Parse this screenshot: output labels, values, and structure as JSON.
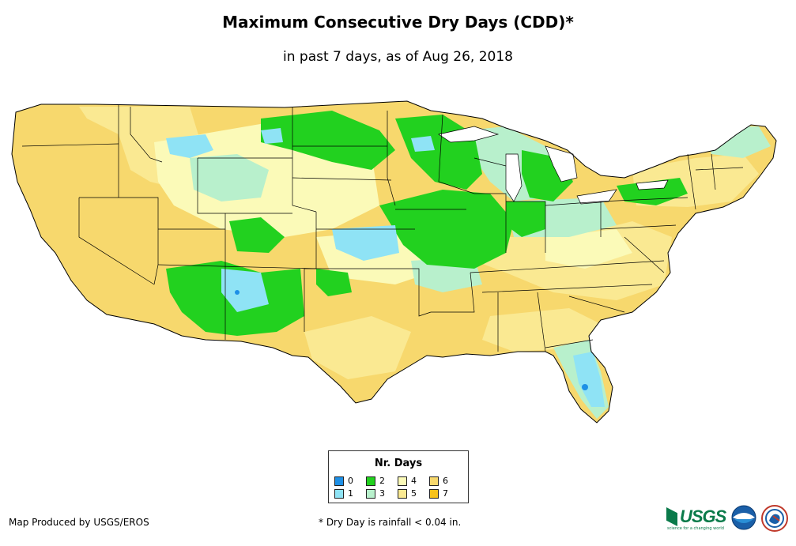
{
  "title": "Maximum Consecutive Dry Days (CDD)*",
  "subtitle": "in past 7 days, as of Aug 26, 2018",
  "legend": {
    "title": "Nr. Days",
    "items": [
      {
        "label": "0",
        "color": "#1e90e6"
      },
      {
        "label": "1",
        "color": "#8fe3f5"
      },
      {
        "label": "2",
        "color": "#22d11f"
      },
      {
        "label": "3",
        "color": "#b8f0cc"
      },
      {
        "label": "4",
        "color": "#fbfab8"
      },
      {
        "label": "5",
        "color": "#fae992"
      },
      {
        "label": "6",
        "color": "#f7d86d"
      },
      {
        "label": "7",
        "color": "#f7c21a"
      }
    ]
  },
  "credit": "Map Produced by USGS/EROS",
  "footnote": "* Dry Day is rainfall < 0.04 in.",
  "logos": {
    "usgs": "USGS",
    "usgs_tagline": "science for a changing world",
    "noaa_icon": "noaa-logo-icon",
    "nws_icon": "nws-logo-icon"
  }
}
